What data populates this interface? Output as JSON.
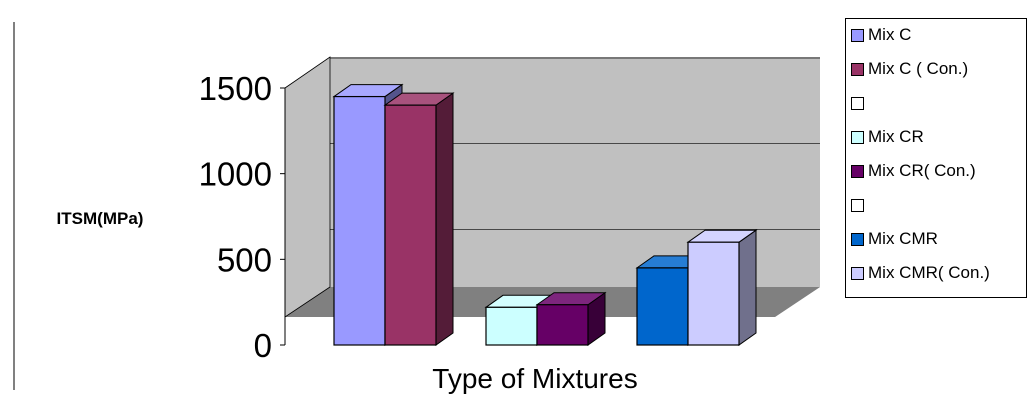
{
  "chart_data": {
    "type": "bar",
    "style": "3d-clustered-column",
    "ylabel": "ITSM(MPa)",
    "xlabel": "Type of Mixtures",
    "yticks": [
      0,
      500,
      1000,
      1500
    ],
    "ylim": [
      0,
      1500
    ],
    "grid": true,
    "legend_position": "right",
    "series": [
      {
        "name": "Mix C",
        "color": "#9999ff",
        "values": [
          1450
        ]
      },
      {
        "name": "Mix C ( Con.)",
        "color": "#993366",
        "values": [
          1400
        ]
      },
      {
        "name": "Mix CR",
        "color": "#ccffff",
        "values": [
          220
        ]
      },
      {
        "name": "Mix CR( Con.)",
        "color": "#660066",
        "values": [
          235
        ]
      },
      {
        "name": "Mix CMR",
        "color": "#0066cc",
        "values": [
          450
        ]
      },
      {
        "name": "Mix CMR( Con.)",
        "color": "#ccccff",
        "values": [
          600
        ]
      }
    ],
    "legend_entries": [
      "Mix C",
      "Mix C ( Con.)",
      "",
      "Mix CR",
      "Mix CR( Con.)",
      "",
      "Mix CMR",
      "Mix CMR( Con.)"
    ],
    "legend_colors": [
      "#9999ff",
      "#993366",
      "#ffffff",
      "#ccffff",
      "#660066",
      "#ffffff",
      "#0066cc",
      "#ccccff"
    ]
  }
}
